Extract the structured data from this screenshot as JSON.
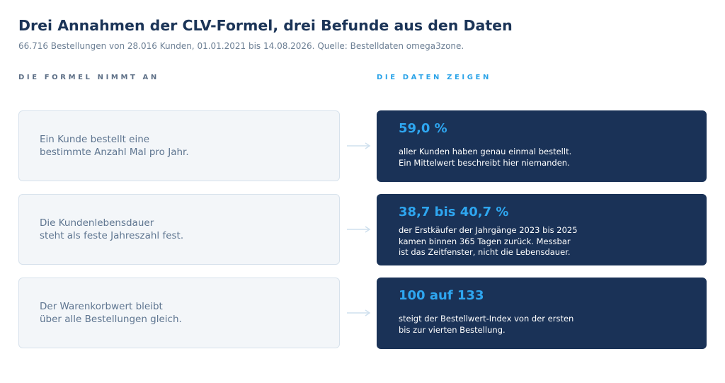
{
  "title": "Drei Annahmen der CLV-Formel, drei Befunde aus den Daten",
  "subtitle": "66.716 Bestellungen von 28.016 Kunden, 01.01.2021 bis 14.08.2026. Quelle: Bestelldaten omega3zone.",
  "columns": {
    "left": "DIE FORMEL NIMMT AN",
    "right": "DIE DATEN ZEIGEN"
  },
  "rows": [
    {
      "assumption": "Ein Kunde bestellt eine\nbestimmte Anzahl Mal pro Jahr.",
      "value": "59,0 %",
      "text": "aller Kunden haben genau einmal bestellt.\nEin Mittelwert beschreibt hier niemanden."
    },
    {
      "assumption": "Die Kundenlebensdauer\nsteht als feste Jahreszahl fest.",
      "value": "38,7 bis 40,7 %",
      "text": "der Erstkäufer der Jahrgänge 2023 bis 2025\nkamen binnen 365 Tagen zurück. Messbar\nist das Zeitfenster, nicht die Lebensdauer."
    },
    {
      "assumption": "Der Warenkorbwert bleibt\nüber alle Bestellungen gleich.",
      "value": "100 auf 133",
      "text": "steigt der Bestellwert-Index von der ersten\nbis zur vierten Bestellung."
    }
  ],
  "colors": {
    "title": "#1b3457",
    "accent": "#2ea6f0",
    "card_dark": "#1a3257",
    "card_light": "#f3f6f9",
    "arrow": "#cfe0ee"
  },
  "icons": {
    "connector": "arrow-right-icon"
  }
}
